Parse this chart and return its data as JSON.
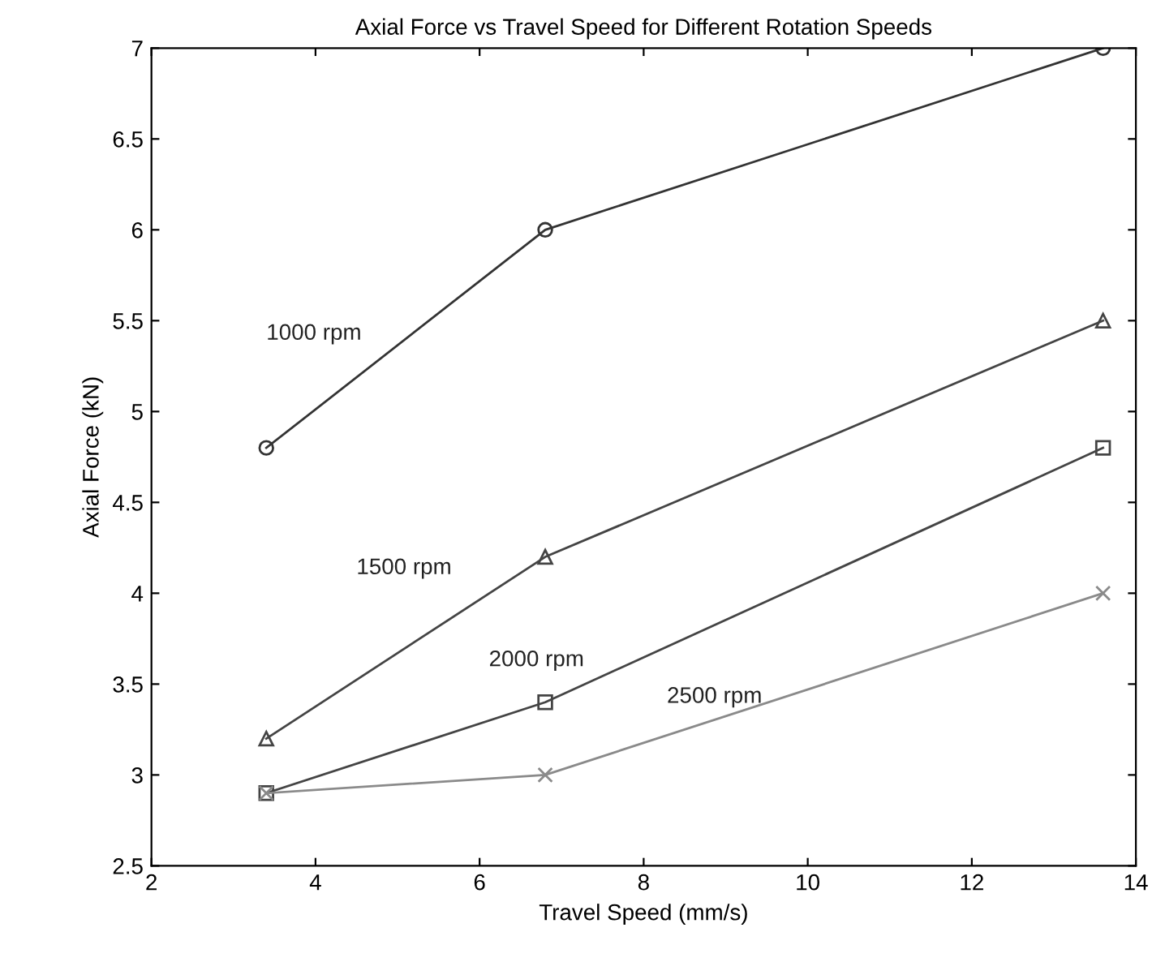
{
  "chart_data": {
    "type": "line",
    "title": "Axial Force vs Travel Speed for Different Rotation Speeds",
    "xlabel": "Travel Speed (mm/s)",
    "ylabel": "Axial Force (kN)",
    "x": [
      3.4,
      6.8,
      13.6
    ],
    "series": [
      {
        "name": "1000 rpm",
        "color": "#333333",
        "marker": "circle",
        "values": [
          4.8,
          6.0,
          7.0
        ]
      },
      {
        "name": "1500 rpm",
        "color": "#444444",
        "marker": "triangle",
        "values": [
          3.2,
          4.2,
          5.5
        ]
      },
      {
        "name": "2000 rpm",
        "color": "#444444",
        "marker": "square",
        "values": [
          2.9,
          3.4,
          4.8
        ]
      },
      {
        "name": "2500 rpm",
        "color": "#8a8a8a",
        "marker": "cross",
        "values": [
          2.9,
          3.0,
          4.0
        ]
      }
    ],
    "xlim": [
      2,
      14
    ],
    "xticks": [
      2,
      4,
      6,
      8,
      10,
      12,
      14
    ],
    "ylim": [
      2.5,
      7
    ],
    "yticks": [
      2.5,
      3,
      3.5,
      4,
      4.5,
      5,
      5.5,
      6,
      6.5,
      7
    ],
    "grid": false,
    "legend": false,
    "line_style": "solid"
  }
}
